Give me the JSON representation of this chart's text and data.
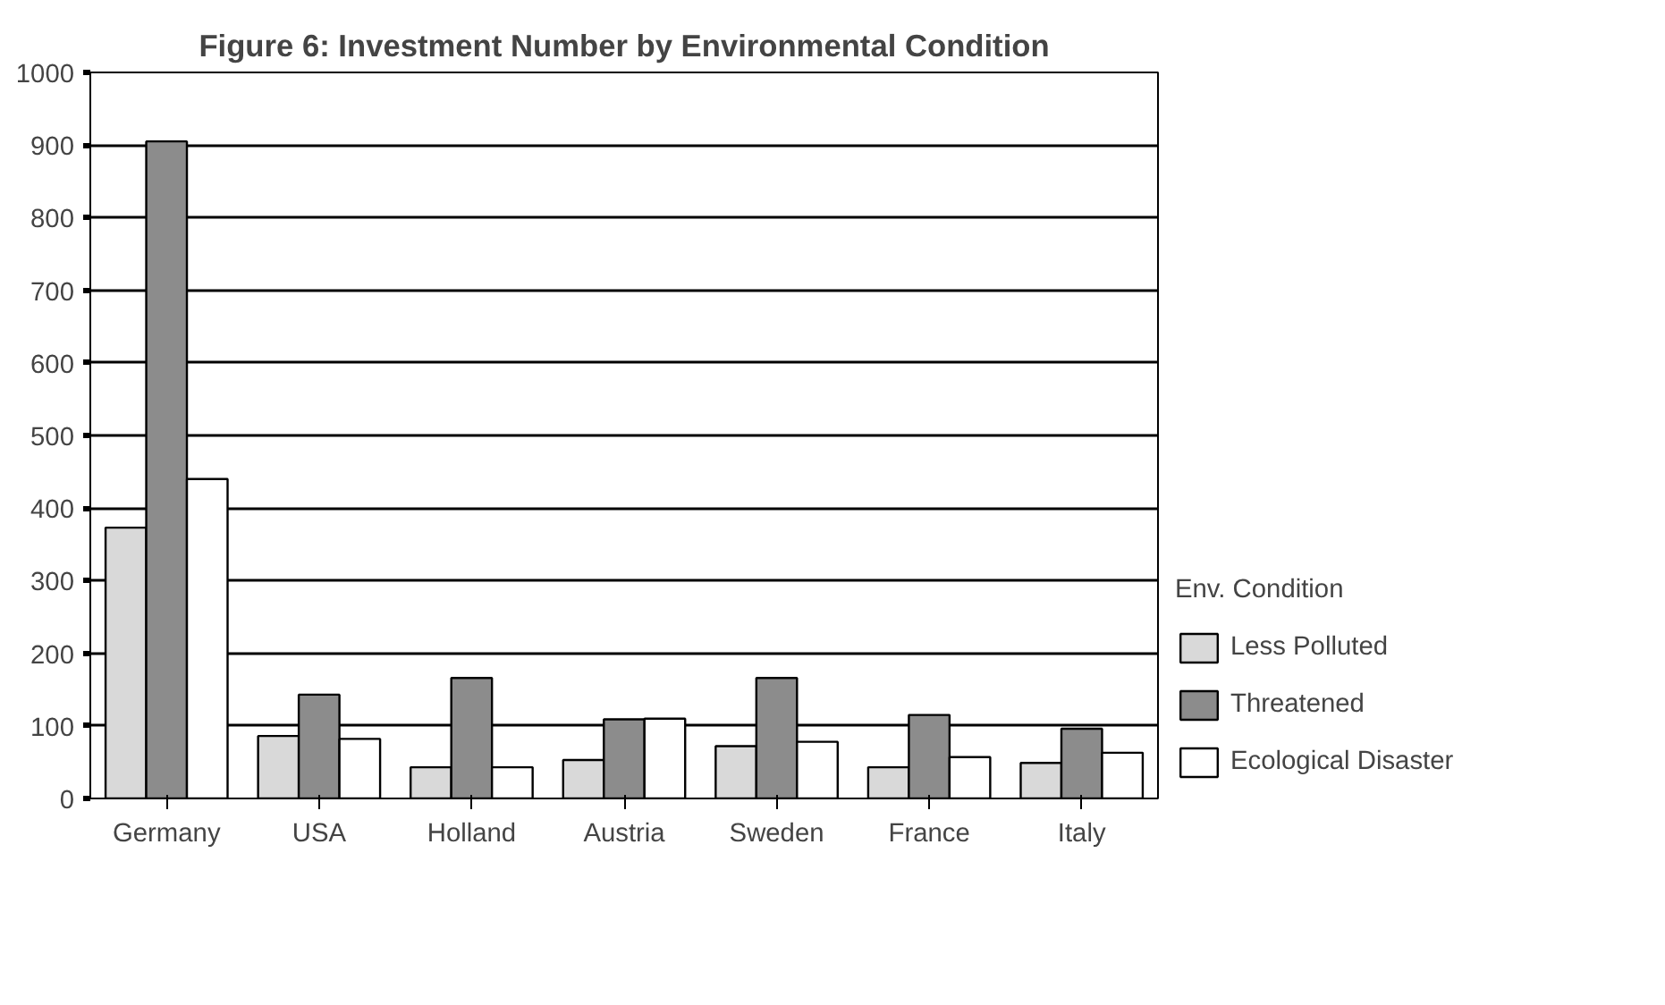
{
  "chart_data": {
    "type": "bar",
    "title": "Figure 6: Investment Number by Environmental Condition",
    "legend_title": "Env. Condition",
    "categories": [
      "Germany",
      "USA",
      "Holland",
      "Austria",
      "Sweden",
      "France",
      "Italy"
    ],
    "series": [
      {
        "name": "Less Polluted",
        "color": "#d9d9d9",
        "values": [
          373,
          86,
          43,
          53,
          72,
          43,
          49
        ]
      },
      {
        "name": "Threatened",
        "color": "#8c8c8c",
        "values": [
          905,
          143,
          166,
          109,
          166,
          115,
          96
        ]
      },
      {
        "name": "Ecological Disaster",
        "color": "#ffffff",
        "values": [
          440,
          82,
          43,
          110,
          78,
          57,
          63
        ]
      }
    ],
    "ylim": [
      0,
      1000
    ],
    "yticks": [
      0,
      100,
      200,
      300,
      400,
      500,
      600,
      700,
      800,
      900,
      1000
    ],
    "grid": "y",
    "legend": "right"
  }
}
